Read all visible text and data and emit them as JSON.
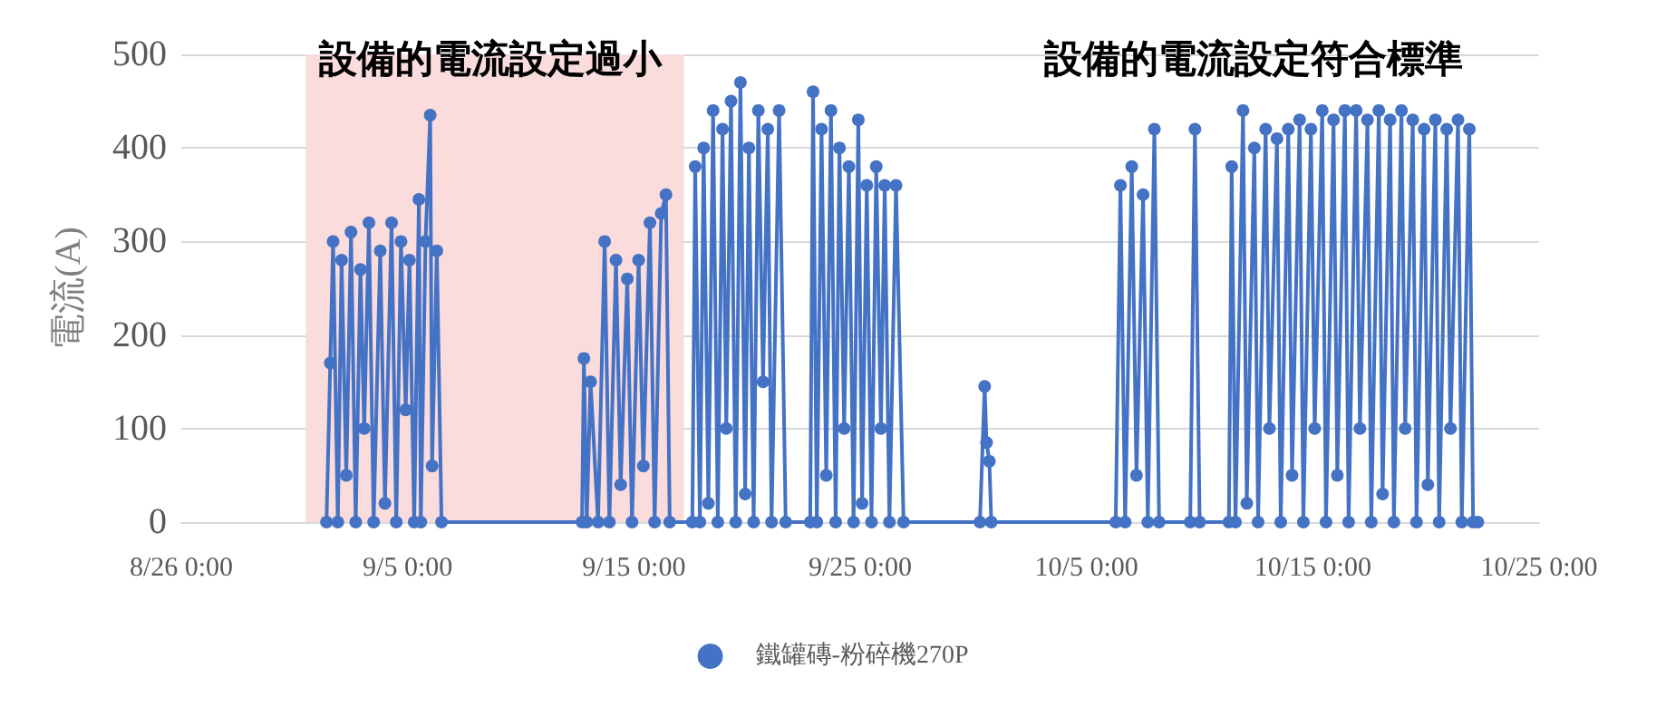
{
  "chart_data": {
    "type": "line",
    "ylabel": "電流(A)",
    "annotations": [
      "設備的電流設定過小",
      "設備的電流設定符合標準"
    ],
    "xlim": [
      "--08-26",
      "--10-25"
    ],
    "xticks": [
      {
        "value": "--08-26",
        "label": "8/26 0:00"
      },
      {
        "value": "--09-05",
        "label": "9/5 0:00"
      },
      {
        "value": "--09-15",
        "label": "9/15 0:00"
      },
      {
        "value": "--09-25",
        "label": "9/25 0:00"
      },
      {
        "value": "--10-05",
        "label": "10/5 0:00"
      },
      {
        "value": "--10-15",
        "label": "10/15 0:00"
      },
      {
        "value": "--10-25",
        "label": "10/25 0:00"
      }
    ],
    "ylim": [
      0,
      500
    ],
    "yticks": [
      0,
      100,
      200,
      300,
      400,
      500
    ],
    "grid": "y",
    "legend": "bottom",
    "marker": "circle",
    "line_style": "solid",
    "bands": [
      {
        "axis": "x",
        "from": "--08-31T12:00",
        "to": "--09-17T05:00",
        "color": "#fbdcdc"
      }
    ],
    "x": [
      "--09-01T10:00",
      "--09-01T14:00",
      "--09-01T17:00",
      "--09-01T22:00",
      "--09-02T02:00",
      "--09-02T07:00",
      "--09-02T12:00",
      "--09-02T17:00",
      "--09-02T22:00",
      "--09-03T02:00",
      "--09-03T07:00",
      "--09-03T12:00",
      "--09-03T19:00",
      "--09-04T00:00",
      "--09-04T07:00",
      "--09-04T12:00",
      "--09-04T17:00",
      "--09-04T22:00",
      "--09-05T02:00",
      "--09-05T07:00",
      "--09-05T12:00",
      "--09-05T14:00",
      "--09-05T19:00",
      "--09-06T00:00",
      "--09-06T02:00",
      "--09-06T07:00",
      "--09-06T12:00",
      "--09-12T17:00",
      "--09-12T19:00",
      "--09-12T22:00",
      "--09-13T02:00",
      "--09-13T10:00",
      "--09-13T17:00",
      "--09-13T22:00",
      "--09-14T05:00",
      "--09-14T10:00",
      "--09-14T17:00",
      "--09-14T22:00",
      "--09-15T05:00",
      "--09-15T10:00",
      "--09-15T17:00",
      "--09-15T22:00",
      "--09-16T05:00",
      "--09-16T10:00",
      "--09-16T14:00",
      "--09-17T14:00",
      "--09-17T17:00",
      "--09-17T22:00",
      "--09-18T02:00",
      "--09-18T07:00",
      "--09-18T12:00",
      "--09-18T17:00",
      "--09-18T22:00",
      "--09-19T02:00",
      "--09-19T07:00",
      "--09-19T12:00",
      "--09-19T17:00",
      "--09-19T22:00",
      "--09-20T02:00",
      "--09-20T07:00",
      "--09-20T12:00",
      "--09-20T17:00",
      "--09-20T22:00",
      "--09-21T02:00",
      "--09-21T10:00",
      "--09-21T17:00",
      "--09-22T19:00",
      "--09-22T22:00",
      "--09-23T02:00",
      "--09-23T07:00",
      "--09-23T12:00",
      "--09-23T17:00",
      "--09-23T22:00",
      "--09-24T02:00",
      "--09-24T07:00",
      "--09-24T12:00",
      "--09-24T17:00",
      "--09-24T22:00",
      "--09-25T02:00",
      "--09-25T07:00",
      "--09-25T12:00",
      "--09-25T17:00",
      "--09-25T22:00",
      "--09-26T02:00",
      "--09-26T07:00",
      "--09-26T14:00",
      "--09-26T22:00",
      "--09-30T07:00",
      "--09-30T12:00",
      "--09-30T14:00",
      "--09-30T17:00",
      "--09-30T19:00",
      "--10-06T07:00",
      "--10-06T12:00",
      "--10-06T17:00",
      "--10-07T00:00",
      "--10-07T05:00",
      "--10-07T12:00",
      "--10-07T17:00",
      "--10-08T00:00",
      "--10-08T05:00",
      "--10-09T14:00",
      "--10-09T19:00",
      "--10-10T00:00",
      "--10-11T07:00",
      "--10-11T10:00",
      "--10-11T14:00",
      "--10-11T22:00",
      "--10-12T02:00",
      "--10-12T10:00",
      "--10-12T14:00",
      "--10-12T22:00",
      "--10-13T02:00",
      "--10-13T10:00",
      "--10-13T14:00",
      "--10-13T22:00",
      "--10-14T02:00",
      "--10-14T10:00",
      "--10-14T14:00",
      "--10-14T22:00",
      "--10-15T02:00",
      "--10-15T10:00",
      "--10-15T14:00",
      "--10-15T22:00",
      "--10-16T02:00",
      "--10-16T10:00",
      "--10-16T14:00",
      "--10-16T22:00",
      "--10-17T02:00",
      "--10-17T10:00",
      "--10-17T14:00",
      "--10-17T22:00",
      "--10-18T02:00",
      "--10-18T10:00",
      "--10-18T14:00",
      "--10-18T22:00",
      "--10-19T02:00",
      "--10-19T10:00",
      "--10-19T14:00",
      "--10-19T22:00",
      "--10-20T02:00",
      "--10-20T10:00",
      "--10-20T14:00",
      "--10-20T22:00",
      "--10-21T02:00",
      "--10-21T10:00",
      "--10-21T14:00",
      "--10-21T22:00",
      "--10-22T02:00",
      "--10-22T07:00"
    ],
    "series": [
      {
        "name": "鐵罐磚-粉碎機270P",
        "color": "#4472c4",
        "values": [
          0,
          170,
          300,
          0,
          280,
          50,
          310,
          0,
          270,
          100,
          320,
          0,
          290,
          20,
          320,
          0,
          300,
          120,
          280,
          0,
          345,
          0,
          300,
          435,
          60,
          290,
          0,
          0,
          175,
          0,
          150,
          0,
          300,
          0,
          280,
          40,
          260,
          0,
          280,
          60,
          320,
          0,
          330,
          350,
          0,
          0,
          380,
          0,
          400,
          20,
          440,
          0,
          420,
          100,
          450,
          0,
          470,
          30,
          400,
          0,
          440,
          150,
          420,
          0,
          440,
          0,
          0,
          460,
          0,
          420,
          50,
          440,
          0,
          400,
          100,
          380,
          0,
          430,
          20,
          360,
          0,
          380,
          100,
          360,
          0,
          360,
          0,
          0,
          145,
          85,
          65,
          0,
          0,
          360,
          0,
          380,
          50,
          350,
          0,
          420,
          0,
          0,
          420,
          0,
          0,
          380,
          0,
          440,
          20,
          400,
          0,
          420,
          100,
          410,
          0,
          420,
          50,
          430,
          0,
          420,
          100,
          440,
          0,
          430,
          50,
          440,
          0,
          440,
          100,
          430,
          0,
          440,
          30,
          430,
          0,
          440,
          100,
          430,
          0,
          420,
          40,
          430,
          0,
          420,
          100,
          430,
          0,
          420,
          0,
          0
        ]
      }
    ]
  }
}
